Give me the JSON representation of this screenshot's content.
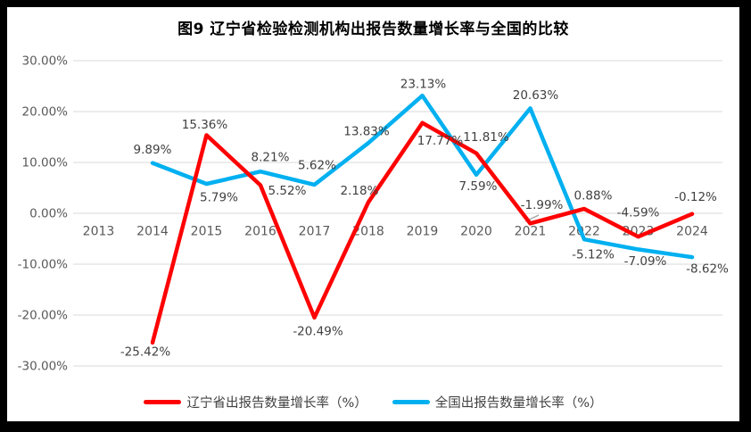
{
  "chart_data": {
    "type": "line",
    "title": "图9  辽宁省检验检测机构出报告数量增长率与全国的比较",
    "categories": [
      "2013",
      "2014",
      "2015",
      "2016",
      "2017",
      "2018",
      "2019",
      "2020",
      "2021",
      "2022",
      "2023",
      "2024"
    ],
    "xlabel": "",
    "ylabel": "",
    "grid": true,
    "legend_position": "bottom",
    "y_axis": {
      "min": -30,
      "max": 30,
      "step": 10,
      "tick_labels": [
        "30.00%",
        "20.00%",
        "10.00%",
        "0.00%",
        "-10.00%",
        "-20.00%",
        "-30.00%"
      ]
    },
    "series": [
      {
        "name": "全国出报告数量增长率（%）",
        "color": "#00B0F0",
        "values": [
          null,
          9.89,
          5.79,
          8.21,
          5.62,
          13.83,
          23.13,
          7.59,
          20.63,
          -5.12,
          -7.09,
          -8.62
        ],
        "labels": [
          null,
          "9.89%",
          "5.79%",
          "8.21%",
          "5.62%",
          "13.83%",
          "23.13%",
          "7.59%",
          "20.63%",
          "-5.12%",
          "-7.09%",
          "-8.62%"
        ],
        "label_offsets": [
          null,
          [
            0,
            -15
          ],
          [
            14,
            15
          ],
          [
            11,
            -16
          ],
          [
            3,
            -22
          ],
          [
            -2,
            -13
          ],
          [
            1,
            -13
          ],
          [
            2,
            13
          ],
          [
            6,
            -15
          ],
          [
            10,
            17
          ],
          [
            8,
            13
          ],
          [
            17,
            13
          ]
        ]
      },
      {
        "name": "辽宁省出报告数量增长率（%）",
        "color": "#FF0000",
        "values": [
          null,
          -25.42,
          15.36,
          5.52,
          -20.49,
          2.18,
          17.77,
          11.81,
          -1.99,
          0.88,
          -4.59,
          -0.12
        ],
        "labels": [
          null,
          "-25.42%",
          "15.36%",
          "5.52%",
          "-20.49%",
          "2.18%",
          "17.77%",
          "11.81%",
          "-1.99%",
          "0.88%",
          "-4.59%",
          "-0.12%"
        ],
        "label_offsets": [
          null,
          [
            -8,
            10
          ],
          [
            -2,
            -12
          ],
          [
            30,
            6
          ],
          [
            4,
            15
          ],
          [
            -10,
            -13
          ],
          [
            20,
            20
          ],
          [
            11,
            -18
          ],
          [
            13,
            -21
          ],
          [
            10,
            -15
          ],
          [
            0,
            -27
          ],
          [
            4,
            -19
          ]
        ]
      }
    ]
  }
}
